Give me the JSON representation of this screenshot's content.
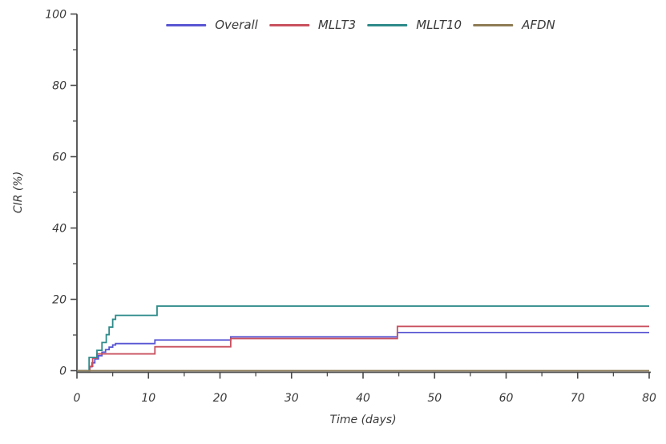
{
  "chart_data": {
    "type": "line",
    "step": true,
    "title": "",
    "xlabel": "Time (days)",
    "ylabel": "CIR (%)",
    "xlim": [
      0,
      80
    ],
    "ylim": [
      0,
      100
    ],
    "x_major_ticks": [
      0,
      10,
      20,
      30,
      40,
      50,
      60,
      70,
      80
    ],
    "x_minor_ticks": [
      5,
      15,
      25,
      35,
      45,
      55,
      65,
      75
    ],
    "y_major_ticks": [
      0,
      20,
      40,
      60,
      80,
      100
    ],
    "y_minor_ticks": [
      10,
      30,
      50,
      70,
      90
    ],
    "grid": false,
    "legend_position": "top-center",
    "axis_color": "#4a4a4a",
    "text_color": "#3a3a3a",
    "series": [
      {
        "name": "Overall",
        "color": "#5956d3",
        "points": [
          [
            0,
            0
          ],
          [
            1.8,
            1.1
          ],
          [
            2.1,
            2.2
          ],
          [
            2.5,
            3.3
          ],
          [
            3,
            4.2
          ],
          [
            3.5,
            5.2
          ],
          [
            4,
            5.9
          ],
          [
            4.5,
            6.6
          ],
          [
            5,
            7.2
          ],
          [
            5.4,
            7.6
          ],
          [
            10.9,
            8.6
          ],
          [
            21.5,
            9.5
          ],
          [
            44.8,
            10.7
          ],
          [
            80,
            10.7
          ]
        ]
      },
      {
        "name": "MLLT3",
        "color": "#c9515f",
        "points": [
          [
            0,
            0
          ],
          [
            1.8,
            1.2
          ],
          [
            2.2,
            3.5
          ],
          [
            2.8,
            4.7
          ],
          [
            10.9,
            6.7
          ],
          [
            21.5,
            9.0
          ],
          [
            44.8,
            12.4
          ],
          [
            80,
            12.4
          ]
        ]
      },
      {
        "name": "MLLT10",
        "color": "#2e8b8a",
        "points": [
          [
            0,
            0
          ],
          [
            1.7,
            3.7
          ],
          [
            2.8,
            5.7
          ],
          [
            3.5,
            7.9
          ],
          [
            4.1,
            10.1
          ],
          [
            4.5,
            12.2
          ],
          [
            5,
            14.4
          ],
          [
            5.4,
            15.5
          ],
          [
            11.2,
            18.1
          ],
          [
            80,
            18.1
          ]
        ]
      },
      {
        "name": "AFDN",
        "color": "#8e7c56",
        "points": [
          [
            0,
            0
          ],
          [
            80,
            0
          ]
        ]
      }
    ]
  }
}
